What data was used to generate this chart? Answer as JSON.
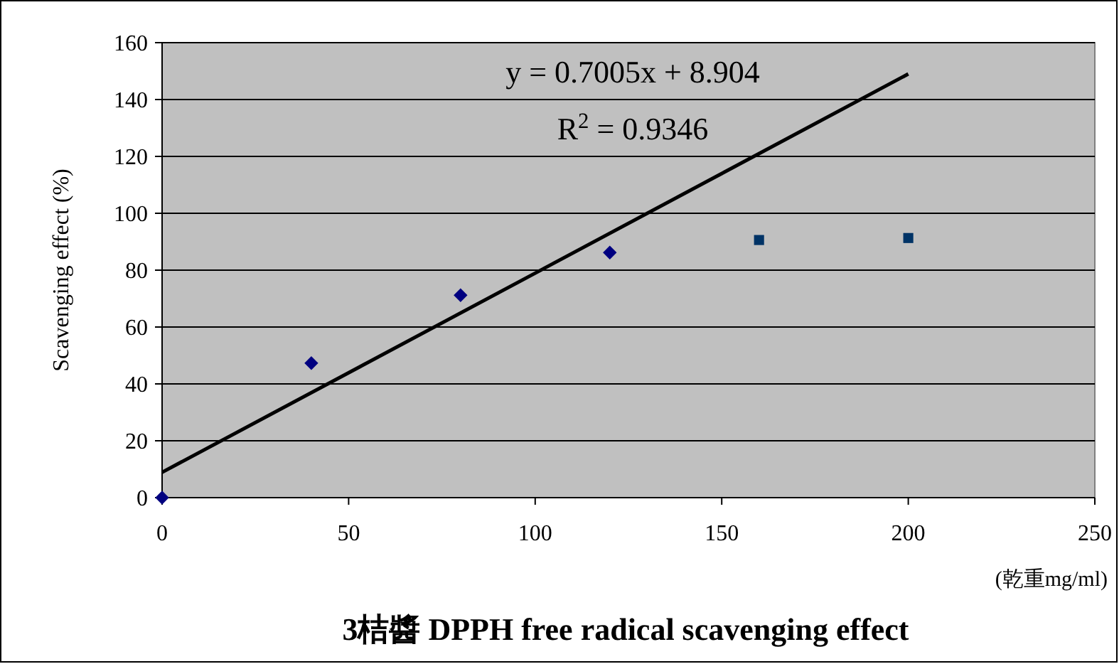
{
  "chart_data": {
    "type": "scatter",
    "title": "3桔醬 DPPH free radical scavenging effect",
    "xlabel": "(乾重mg/ml)",
    "ylabel": "Scavenging effect (%)",
    "annotations": [
      "y = 0.7005x + 8.904",
      "R$^{2}$ = 0.9346"
    ],
    "series": [
      {
        "color": "#000080",
        "marker": "diamond",
        "x": [
          0,
          40,
          80,
          120
        ],
        "values": [
          0,
          47.3,
          71.2,
          86.2
        ]
      },
      {
        "color": "#003366",
        "marker": "square",
        "x": [
          160,
          200
        ],
        "values": [
          90.6,
          91.3
        ]
      },
      {
        "type": "line",
        "color": "#000000",
        "marker": "none",
        "x": [
          0,
          200
        ],
        "values": [
          8.9,
          149.0
        ]
      }
    ],
    "xlim": [
      0,
      250
    ],
    "xticks": [
      0,
      50,
      100,
      150,
      200,
      250
    ],
    "ylim": [
      0,
      160
    ],
    "yticks": [
      0,
      20,
      40,
      60,
      80,
      100,
      120,
      140,
      160
    ],
    "grid": "y"
  }
}
